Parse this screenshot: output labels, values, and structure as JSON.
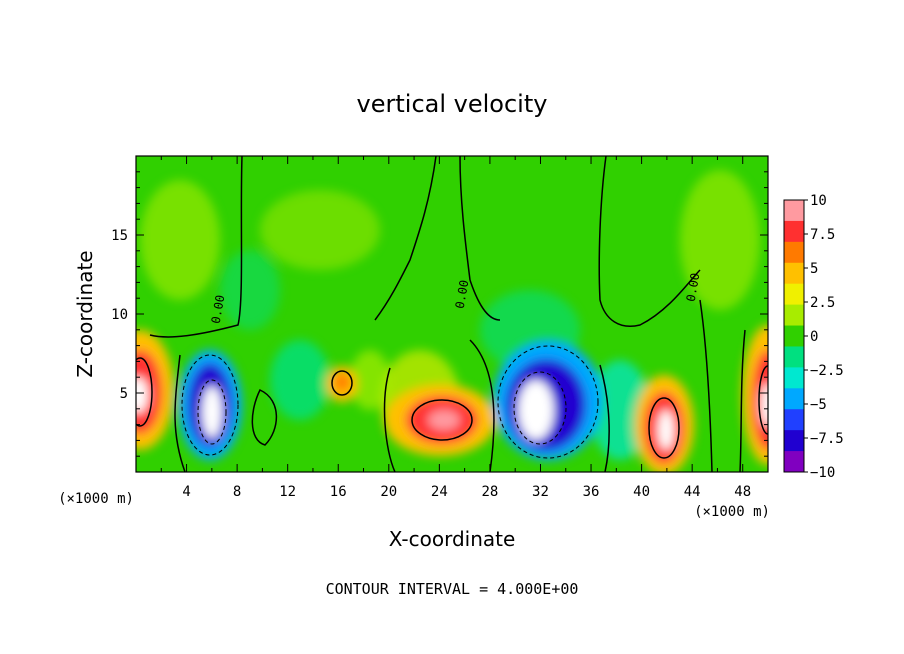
{
  "chart_data": {
    "type": "heatmap",
    "title": "vertical velocity",
    "xlabel": "X-coordinate",
    "ylabel": "Z-coordinate",
    "x_unit_left": "(×1000 m)",
    "x_unit_right": "(×1000 m)",
    "xlim": [
      0,
      50
    ],
    "ylim": [
      0,
      20
    ],
    "xticks": [
      4,
      8,
      12,
      16,
      20,
      24,
      28,
      32,
      36,
      40,
      44,
      48
    ],
    "yticks": [
      5,
      10,
      15
    ],
    "footer": "CONTOUR INTERVAL = 4.000E+00",
    "contour_labels": [
      "0.00",
      "0.00",
      "0.00"
    ],
    "colorbar": {
      "ticks": [
        "10",
        "7.5",
        "5",
        "2.5",
        "0",
        "−2.5",
        "−5",
        "−7.5",
        "−10"
      ],
      "range": [
        -10,
        10
      ],
      "colors": [
        "#ff9aa0",
        "#ff3030",
        "#ff7a00",
        "#ffc000",
        "#f0f000",
        "#a8ec00",
        "#30d000",
        "#00e080",
        "#00e8d0",
        "#00a8ff",
        "#2040ff",
        "#2000d0",
        "#8000c0"
      ]
    },
    "features": [
      {
        "kind": "updraft",
        "x": 0.5,
        "z": 4.5,
        "peak": 12
      },
      {
        "kind": "downdraft",
        "x": 6,
        "z": 4.5,
        "peak": -13
      },
      {
        "kind": "updraft",
        "x": 16,
        "z": 5.8,
        "peak": 5
      },
      {
        "kind": "updraft",
        "x": 24,
        "z": 3.2,
        "peak": 9
      },
      {
        "kind": "downdraft",
        "x": 31,
        "z": 4,
        "peak": -14
      },
      {
        "kind": "updraft",
        "x": 42,
        "z": 3,
        "peak": 12
      },
      {
        "kind": "updraft",
        "x": 49.5,
        "z": 4.5,
        "peak": 11
      }
    ]
  }
}
